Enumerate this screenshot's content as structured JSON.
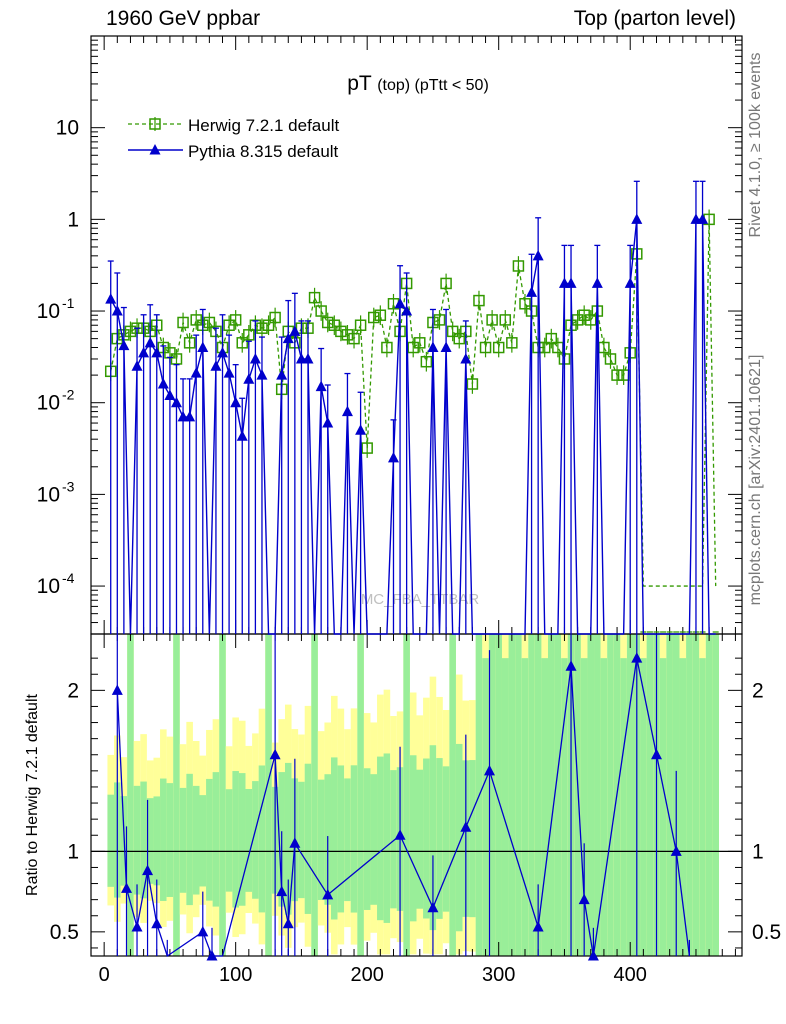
{
  "header": {
    "left": "1960 GeV ppbar",
    "right": "Top (parton level)"
  },
  "side": {
    "rivet": "Rivet 4.1.0, ≥ 100k events",
    "mcplots": "mcplots.cern.ch [arXiv:2401.10621]"
  },
  "watermark": "MC_FBA_TTBAR",
  "colors": {
    "herwig": "#339900",
    "pythia": "#0000cc",
    "band_inner": "#99ee99",
    "band_outer": "#ffff99"
  },
  "chart_data": [
    {
      "type": "line",
      "title_main": "pT",
      "title_sub": "(top)",
      "title_cut": "(pTtt < 50)",
      "xlabel": "",
      "ylabel": "",
      "yscale": "log",
      "xlim": [
        -10,
        485
      ],
      "ylim": [
        3e-05,
        100
      ],
      "xticks": [
        "0",
        "100",
        "200",
        "300",
        "400"
      ],
      "yticks": [
        "10^{-4}",
        "10^{-3}",
        "10^{-2}",
        "10^{-1}",
        "1",
        "10"
      ],
      "legend_position": "top-left",
      "series": [
        {
          "name": "Herwig 7.2.1 default",
          "marker": "open-square",
          "linestyle": "dashed",
          "x": [
            5,
            10,
            15,
            20,
            25,
            30,
            35,
            40,
            45,
            50,
            55,
            60,
            65,
            70,
            75,
            80,
            85,
            90,
            95,
            100,
            105,
            110,
            115,
            120,
            125,
            130,
            135,
            140,
            145,
            150,
            155,
            160,
            165,
            170,
            175,
            180,
            185,
            190,
            195,
            200,
            205,
            210,
            215,
            220,
            225,
            230,
            235,
            240,
            245,
            250,
            255,
            260,
            265,
            270,
            275,
            280,
            285,
            290,
            295,
            300,
            305,
            310,
            315,
            320,
            325,
            330,
            335,
            340,
            345,
            350,
            355,
            360,
            365,
            370,
            375,
            380,
            385,
            390,
            395,
            400,
            405,
            410,
            415,
            420,
            425,
            430,
            435,
            440,
            445,
            450,
            455,
            460,
            465
          ],
          "values": [
            0.022,
            0.05,
            0.055,
            0.06,
            0.065,
            0.065,
            0.06,
            0.07,
            0.04,
            0.035,
            0.03,
            0.075,
            0.045,
            0.08,
            0.07,
            0.075,
            0.06,
            0.04,
            0.07,
            0.08,
            0.045,
            0.055,
            0.07,
            0.065,
            0.07,
            0.085,
            0.014,
            0.06,
            0.045,
            0.065,
            0.065,
            0.14,
            0.1,
            0.075,
            0.07,
            0.06,
            0.055,
            0.05,
            0.07,
            0.0032,
            0.085,
            0.09,
            0.04,
            0.12,
            0.06,
            0.2,
            0.04,
            0.045,
            0.028,
            0.075,
            0.08,
            0.2,
            0.06,
            0.05,
            0.06,
            0.016,
            0.13,
            0.04,
            0.08,
            0.04,
            0.08,
            0.045,
            0.31,
            0.12,
            0.1,
            0.04,
            0.04,
            0.05,
            0.04,
            0.03,
            0.07,
            0.08,
            0.09,
            0.08,
            0.1,
            0.04,
            0.03,
            0.02,
            0.02,
            0.035,
            0.42,
            0.0001,
            0.0001,
            0.0001,
            0.0001,
            0.0001,
            0.0001,
            0.0001,
            0.0001,
            0.0001,
            0.0001,
            1.0,
            0.0001
          ]
        },
        {
          "name": "Pythia 8.315 default",
          "marker": "filled-triangle",
          "linestyle": "solid",
          "x": [
            5,
            10,
            15,
            20,
            25,
            30,
            35,
            40,
            45,
            50,
            55,
            60,
            65,
            70,
            75,
            80,
            85,
            90,
            95,
            100,
            105,
            110,
            115,
            120,
            125,
            130,
            135,
            140,
            145,
            150,
            155,
            160,
            165,
            170,
            175,
            180,
            185,
            190,
            195,
            200,
            205,
            210,
            215,
            220,
            225,
            230,
            235,
            240,
            245,
            250,
            255,
            260,
            265,
            270,
            275,
            280,
            285,
            290,
            295,
            300,
            305,
            310,
            315,
            320,
            325,
            330,
            335,
            340,
            345,
            350,
            355,
            360,
            365,
            370,
            375,
            380,
            385,
            390,
            395,
            400,
            405,
            410,
            415,
            420,
            425,
            430,
            435,
            440,
            445,
            450,
            455,
            460,
            465
          ],
          "values": [
            0.135,
            0.1,
            0.042,
            0.0,
            0.025,
            0.035,
            0.045,
            0.035,
            0.016,
            0.012,
            0.01,
            0.007,
            0.007,
            0.021,
            0.04,
            0.0,
            0.025,
            0.035,
            0.021,
            0.01,
            0.0043,
            0.018,
            0.03,
            0.02,
            0.0,
            0.0,
            0.02,
            0.05,
            0.06,
            0.03,
            0.03,
            0.0,
            0.015,
            0.006,
            0.0,
            0.0,
            0.008,
            0.0,
            0.005,
            0.0,
            0.0,
            0.0,
            0.0,
            0.0025,
            0.12,
            0.1,
            0.0,
            0.0,
            0.0,
            0.04,
            0.0,
            0.04,
            0.0,
            0.0,
            0.03,
            0.0,
            0.0,
            0.0,
            0.0,
            0.0,
            0.0,
            0.0,
            0.0,
            0.0,
            0.16,
            0.4,
            0.0,
            0.0,
            0.0,
            0.2,
            0.2,
            0.0,
            0.0,
            0.0,
            0.2,
            0.0,
            0.0,
            0.0,
            0.0,
            0.2,
            1.0,
            0.0,
            0.0,
            0.0,
            0.0,
            0.0,
            0.0,
            0.0,
            0.0,
            1.0,
            1.0,
            0.0,
            0.0
          ]
        }
      ]
    },
    {
      "type": "line",
      "ylabel": "Ratio to Herwig 7.2.1 default",
      "xlim": [
        -10,
        485
      ],
      "ylim": [
        0.35,
        2.35
      ],
      "yticks": [
        "0.5",
        "1",
        "2"
      ],
      "xticks": [
        "0",
        "100",
        "200",
        "300",
        "400"
      ],
      "reference": 1,
      "series": [
        {
          "name": "Pythia 8.315 default / Herwig 7.2.1 default",
          "x": [
            10,
            17,
            25,
            33,
            40,
            48,
            75,
            82,
            90,
            130,
            135,
            140,
            145,
            170,
            225,
            250,
            275,
            293,
            330,
            355,
            365,
            372,
            405,
            420,
            435,
            445
          ],
          "values": [
            2.0,
            0.77,
            0.53,
            0.88,
            0.55,
            0.3,
            0.5,
            0.35,
            0.2,
            1.6,
            0.75,
            0.55,
            1.05,
            0.73,
            1.1,
            0.65,
            1.15,
            1.5,
            0.53,
            2.15,
            0.7,
            0.35,
            2.2,
            1.6,
            1.0,
            0.3
          ]
        }
      ]
    }
  ]
}
